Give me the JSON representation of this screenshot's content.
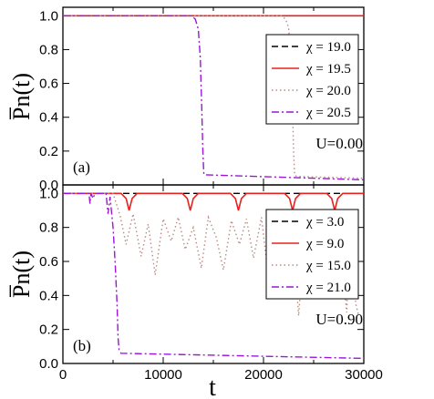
{
  "chart_data": [
    {
      "type": "line",
      "panel_label": "(a)",
      "annotation": "U=0.00",
      "ylabel": "P̅n(t)",
      "xlim": [
        0,
        30000
      ],
      "ylim": [
        0,
        1.05
      ],
      "yticks": [
        "0.0",
        "0.2",
        "0.4",
        "0.6",
        "0.8",
        "1.0"
      ],
      "ytick_values": [
        0,
        0.2,
        0.4,
        0.6,
        0.8,
        1.0
      ],
      "legend_position": "top-right",
      "series": [
        {
          "name": "χ = 19.0",
          "color": "#000000",
          "dash": "dash",
          "x": [
            0,
            30000
          ],
          "y": [
            1.0,
            1.0
          ]
        },
        {
          "name": "χ = 19.5",
          "color": "#e8221f",
          "dash": "solid",
          "x": [
            0,
            30000
          ],
          "y": [
            1.0,
            1.0
          ]
        },
        {
          "name": "χ = 20.0",
          "color": "#b98a84",
          "dash": "dot",
          "x": [
            0,
            21800,
            22200,
            22500,
            22700,
            22900,
            23000,
            23100,
            23300,
            30000
          ],
          "y": [
            1.0,
            1.0,
            0.98,
            0.93,
            0.78,
            0.45,
            0.2,
            0.06,
            0.05,
            0.04
          ]
        },
        {
          "name": "χ = 20.5",
          "color": "#9b17d6",
          "dash": "dashdot",
          "x": [
            0,
            12800,
            13200,
            13500,
            13700,
            13850,
            13950,
            14050,
            14100,
            30000
          ],
          "y": [
            1.0,
            1.0,
            0.98,
            0.92,
            0.75,
            0.45,
            0.2,
            0.07,
            0.06,
            0.03
          ]
        }
      ]
    },
    {
      "type": "line",
      "panel_label": "(b)",
      "annotation": "U=0.90",
      "ylabel": "P̅n(t)",
      "xlabel": "t",
      "xlim": [
        0,
        30000
      ],
      "ylim": [
        0,
        1.05
      ],
      "xticks": [
        "0",
        "10000",
        "20000",
        "30000"
      ],
      "xtick_values": [
        0,
        10000,
        20000,
        30000
      ],
      "yticks": [
        "0.0",
        "0.2",
        "0.4",
        "0.6",
        "0.8",
        "1.0"
      ],
      "ytick_values": [
        0,
        0.2,
        0.4,
        0.6,
        0.8,
        1.0
      ],
      "legend_position": "top-right",
      "series": [
        {
          "name": "χ = 3.0",
          "color": "#000000",
          "dash": "dash",
          "x": [
            0,
            30000
          ],
          "y": [
            1.0,
            1.0
          ]
        },
        {
          "name": "χ = 9.0",
          "color": "#e8221f",
          "dash": "solid",
          "x": [
            0,
            5800,
            6300,
            6600,
            6900,
            7400,
            11900,
            12400,
            12700,
            13000,
            13500,
            16700,
            17200,
            17500,
            17800,
            18300,
            22100,
            22600,
            22900,
            23200,
            23700,
            26300,
            26800,
            27100,
            27400,
            27900,
            30000
          ],
          "y": [
            1.0,
            1.0,
            0.97,
            0.9,
            0.97,
            1.0,
            1.0,
            0.97,
            0.9,
            0.97,
            1.0,
            1.0,
            0.97,
            0.9,
            0.97,
            1.0,
            1.0,
            0.97,
            0.9,
            0.97,
            1.0,
            1.0,
            0.97,
            0.9,
            0.97,
            1.0,
            1.0
          ]
        },
        {
          "name": "χ = 15.0",
          "color": "#b98a84",
          "dash": "dot",
          "x": [
            0,
            5000,
            5700,
            6300,
            7000,
            7800,
            8500,
            9200,
            10000,
            10800,
            11500,
            12200,
            13000,
            13800,
            14500,
            15300,
            16000,
            16800,
            17600,
            18300,
            19000,
            19800,
            20500,
            21300,
            22000,
            22800,
            23500,
            24200,
            25000,
            25800,
            26600,
            27400,
            28300,
            28700,
            29200,
            29500
          ],
          "y": [
            1.0,
            1.0,
            0.87,
            0.7,
            0.88,
            0.63,
            0.82,
            0.52,
            0.85,
            0.72,
            0.86,
            0.67,
            0.8,
            0.56,
            0.86,
            0.74,
            0.55,
            0.84,
            0.7,
            0.85,
            0.62,
            0.86,
            0.5,
            0.85,
            0.4,
            0.88,
            0.28,
            0.85,
            0.6,
            0.83,
            0.38,
            0.88,
            0.3,
            0.85,
            0.35,
            0.28
          ]
        },
        {
          "name": "χ = 21.0",
          "color": "#9b17d6",
          "dash": "dashdot",
          "x": [
            0,
            2600,
            2700,
            2800,
            3000,
            3200,
            3400,
            4300,
            4500,
            4700,
            5000,
            5200,
            5400,
            5500,
            5600,
            5700,
            5800,
            30000
          ],
          "y": [
            1.0,
            1.0,
            0.94,
            1.0,
            0.97,
            1.0,
            1.0,
            1.0,
            0.88,
            0.98,
            0.8,
            0.6,
            0.35,
            0.15,
            0.08,
            0.07,
            0.06,
            0.03
          ]
        }
      ]
    }
  ]
}
